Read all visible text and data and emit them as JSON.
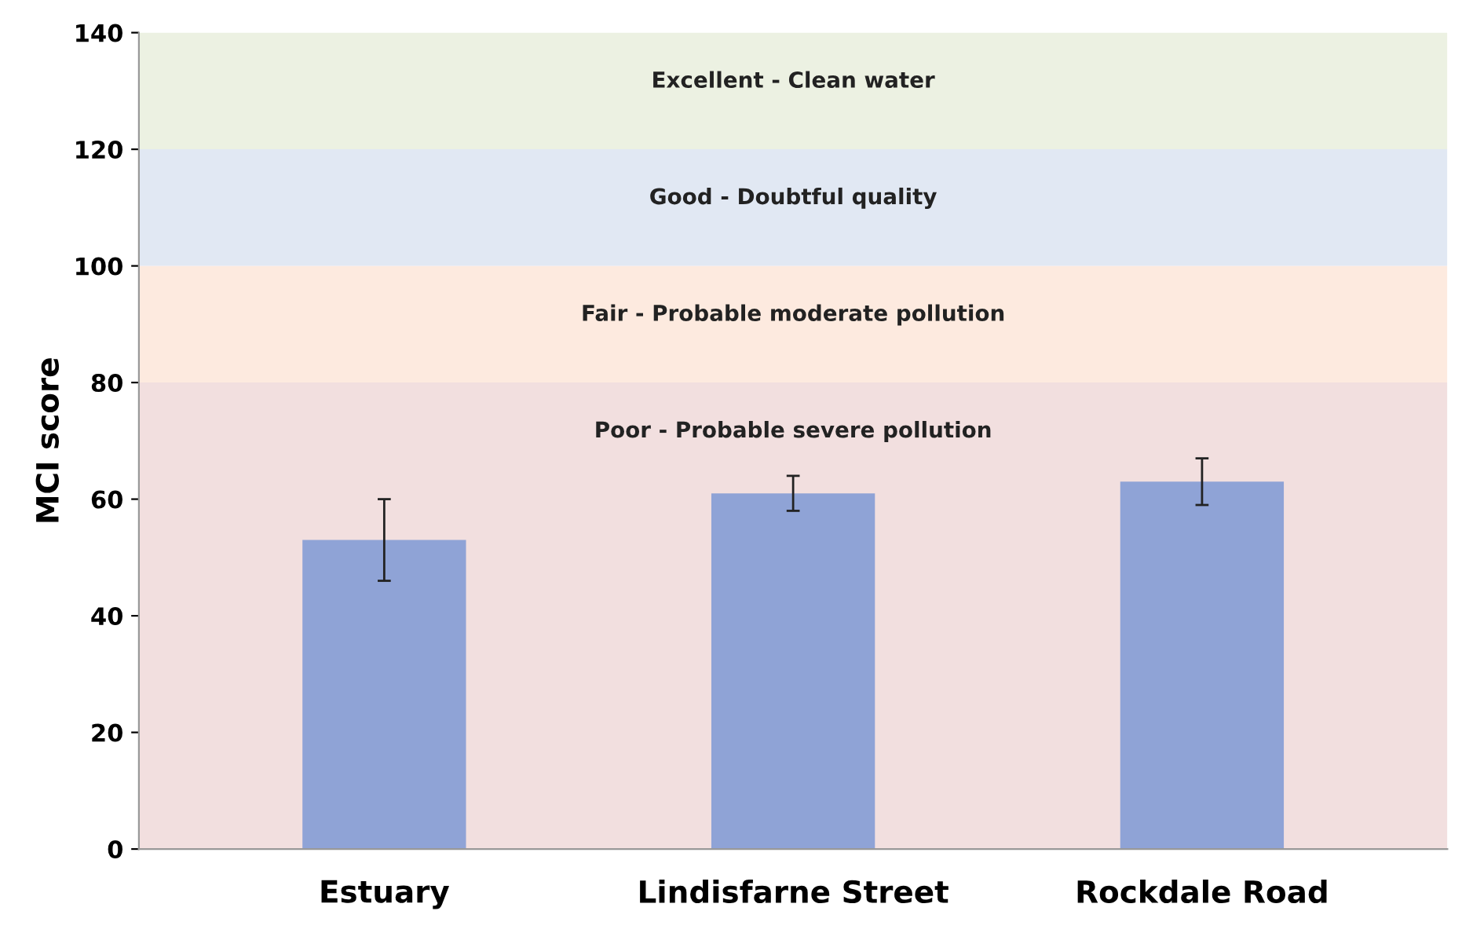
{
  "chart_data": {
    "type": "bar",
    "ylabel": "MCI score",
    "categories": [
      "Estuary",
      "Lindisfarne Street",
      "Rockdale Road"
    ],
    "values": [
      53,
      61,
      63
    ],
    "errors": [
      7,
      3,
      4
    ],
    "color": "#8fa3d6",
    "ylim": [
      0,
      140
    ],
    "yticks": [
      0,
      20,
      40,
      60,
      80,
      100,
      120,
      140
    ],
    "grid": false,
    "bands": [
      {
        "axis": "y",
        "from": 0,
        "to": 80,
        "label": "Poor - Probable severe pollution",
        "color": "#f2dfdf"
      },
      {
        "axis": "y",
        "from": 80,
        "to": 100,
        "label": "Fair - Probable moderate pollution",
        "color": "#fdeadf"
      },
      {
        "axis": "y",
        "from": 100,
        "to": 120,
        "label": "Good - Doubtful quality",
        "color": "#e1e8f3"
      },
      {
        "axis": "y",
        "from": 120,
        "to": 140,
        "label": "Excellent - Clean water",
        "color": "#ecf1e2"
      }
    ]
  }
}
